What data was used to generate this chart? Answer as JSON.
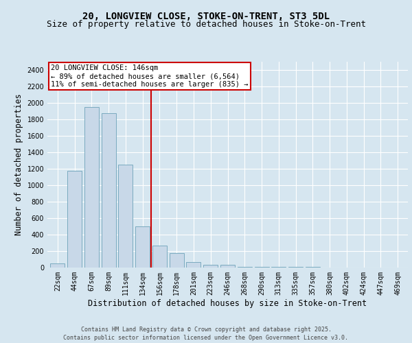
{
  "title1": "20, LONGVIEW CLOSE, STOKE-ON-TRENT, ST3 5DL",
  "title2": "Size of property relative to detached houses in Stoke-on-Trent",
  "xlabel": "Distribution of detached houses by size in Stoke-on-Trent",
  "ylabel": "Number of detached properties",
  "categories": [
    "22sqm",
    "44sqm",
    "67sqm",
    "89sqm",
    "111sqm",
    "134sqm",
    "156sqm",
    "178sqm",
    "201sqm",
    "223sqm",
    "246sqm",
    "268sqm",
    "290sqm",
    "313sqm",
    "335sqm",
    "357sqm",
    "380sqm",
    "402sqm",
    "424sqm",
    "447sqm",
    "469sqm"
  ],
  "values": [
    50,
    1175,
    1950,
    1875,
    1250,
    500,
    270,
    175,
    65,
    35,
    30,
    10,
    10,
    5,
    5,
    5,
    0,
    0,
    0,
    0,
    0
  ],
  "bar_color": "#c8d8e8",
  "bar_edge_color": "#7aaabf",
  "vline_color": "#cc0000",
  "annotation_text": "20 LONGVIEW CLOSE: 146sqm\n← 89% of detached houses are smaller (6,564)\n11% of semi-detached houses are larger (835) →",
  "annotation_box_color": "#cc0000",
  "footer1": "Contains HM Land Registry data © Crown copyright and database right 2025.",
  "footer2": "Contains public sector information licensed under the Open Government Licence v3.0.",
  "ylim": [
    0,
    2500
  ],
  "yticks": [
    0,
    200,
    400,
    600,
    800,
    1000,
    1200,
    1400,
    1600,
    1800,
    2000,
    2200,
    2400
  ],
  "background_color": "#d6e6f0",
  "plot_bg_color": "#d6e6f0",
  "grid_color": "#ffffff",
  "title_fontsize": 10,
  "subtitle_fontsize": 9,
  "tick_fontsize": 7,
  "label_fontsize": 8.5,
  "footer_fontsize": 6,
  "annot_fontsize": 7.5
}
